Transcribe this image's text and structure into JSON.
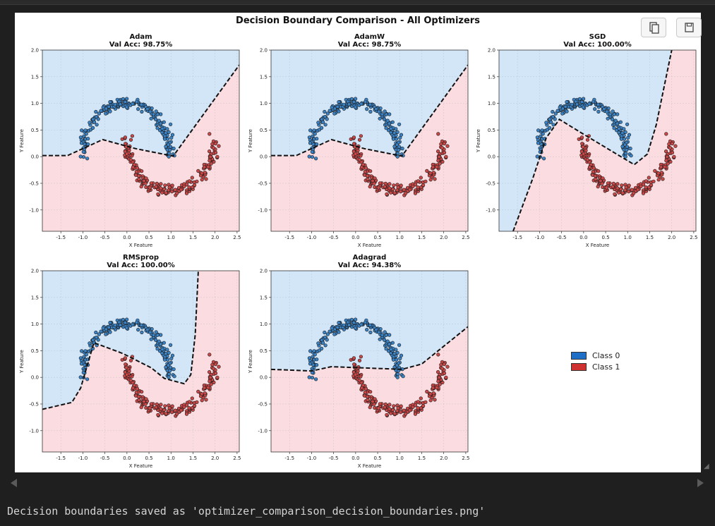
{
  "figure_title": "Decision Boundary Comparison - All Optimizers",
  "output_text": "Decision boundaries saved as 'optimizer_comparison_decision_boundaries.png'",
  "toolbar": {
    "copy_icon": "copy-icon",
    "save_icon": "save-icon"
  },
  "colors": {
    "class0_region": "#d2e6f8",
    "class1_region": "#fbdde1",
    "class0_point": "#3b82c4",
    "class1_point": "#c94747",
    "boundary": "#111111"
  },
  "chart_data": [
    {
      "type": "scatter",
      "title": "Adam",
      "subtitle": "Val Acc: 98.75%",
      "xlabel": "X Feature",
      "ylabel": "Y Feature",
      "xlim": [
        -1.92,
        2.55
      ],
      "ylim": [
        -1.4,
        2.0
      ],
      "xticks": [
        "-1.5",
        "-1.0",
        "-0.5",
        "0.0",
        "0.5",
        "1.0",
        "1.5",
        "2.0",
        "2.5"
      ],
      "yticks": [
        "2.0",
        "1.5",
        "1.0",
        "0.5",
        "0.0",
        "-0.5",
        "-1.0"
      ],
      "grid": true,
      "boundary": [
        [
          -1.92,
          0.02
        ],
        [
          -1.35,
          0.02
        ],
        [
          -0.55,
          0.32
        ],
        [
          0.2,
          0.15
        ],
        [
          1.05,
          0.01
        ],
        [
          2.55,
          1.72
        ]
      ]
    },
    {
      "type": "scatter",
      "title": "AdamW",
      "subtitle": "Val Acc: 98.75%",
      "xlabel": "X Feature",
      "ylabel": "Y Feature",
      "xlim": [
        -1.92,
        2.55
      ],
      "ylim": [
        -1.4,
        2.0
      ],
      "xticks": [
        "-1.5",
        "-1.0",
        "-0.5",
        "0.0",
        "0.5",
        "1.0",
        "1.5",
        "2.0",
        "2.5"
      ],
      "yticks": [
        "2.0",
        "1.5",
        "1.0",
        "0.5",
        "0.0",
        "-0.5",
        "-1.0"
      ],
      "grid": true,
      "boundary": [
        [
          -1.92,
          0.02
        ],
        [
          -1.35,
          0.02
        ],
        [
          -0.55,
          0.32
        ],
        [
          0.2,
          0.15
        ],
        [
          1.05,
          0.01
        ],
        [
          2.55,
          1.72
        ]
      ]
    },
    {
      "type": "scatter",
      "title": "SGD",
      "subtitle": "Val Acc: 100.00%",
      "xlabel": "X Feature",
      "ylabel": "Y Feature",
      "xlim": [
        -1.92,
        2.55
      ],
      "ylim": [
        -1.4,
        2.0
      ],
      "xticks": [
        "-1.5",
        "-1.0",
        "-0.5",
        "0.0",
        "0.5",
        "1.0",
        "1.5",
        "2.0",
        "2.5"
      ],
      "yticks": [
        "2.0",
        "1.5",
        "1.0",
        "0.5",
        "0.0",
        "-0.5",
        "-1.0"
      ],
      "grid": true,
      "boundary": [
        [
          -1.6,
          -1.4
        ],
        [
          -1.15,
          -0.4
        ],
        [
          -0.85,
          0.35
        ],
        [
          -0.55,
          0.7
        ],
        [
          0.0,
          0.42
        ],
        [
          1.15,
          -0.15
        ],
        [
          1.45,
          0.05
        ],
        [
          1.65,
          0.6
        ],
        [
          2.0,
          2.0
        ]
      ]
    },
    {
      "type": "scatter",
      "title": "RMSprop",
      "subtitle": "Val Acc: 100.00%",
      "xlabel": "X Feature",
      "ylabel": "Y Feature",
      "xlim": [
        -1.92,
        2.55
      ],
      "ylim": [
        -1.4,
        2.0
      ],
      "xticks": [
        "-1.5",
        "-1.0",
        "-0.5",
        "0.0",
        "0.5",
        "1.0",
        "1.5",
        "2.0",
        "2.5"
      ],
      "yticks": [
        "2.0",
        "1.5",
        "1.0",
        "0.5",
        "0.0",
        "-0.5",
        "-1.0"
      ],
      "grid": true,
      "boundary": [
        [
          -1.92,
          -0.6
        ],
        [
          -1.25,
          -0.47
        ],
        [
          -1.05,
          -0.2
        ],
        [
          -0.75,
          0.65
        ],
        [
          -0.1,
          0.45
        ],
        [
          0.55,
          0.18
        ],
        [
          0.85,
          -0.02
        ],
        [
          1.3,
          -0.12
        ],
        [
          1.45,
          0.05
        ],
        [
          1.55,
          0.8
        ],
        [
          1.62,
          2.0
        ]
      ]
    },
    {
      "type": "scatter",
      "title": "Adagrad",
      "subtitle": "Val Acc: 94.38%",
      "xlabel": "X Feature",
      "ylabel": "Y Feature",
      "xlim": [
        -1.92,
        2.55
      ],
      "ylim": [
        -1.4,
        2.0
      ],
      "xticks": [
        "-1.5",
        "-1.0",
        "-0.5",
        "0.0",
        "0.5",
        "1.0",
        "1.5",
        "2.0",
        "2.5"
      ],
      "yticks": [
        "2.0",
        "1.5",
        "1.0",
        "0.5",
        "0.0",
        "-0.5",
        "-1.0"
      ],
      "grid": true,
      "boundary": [
        [
          -1.92,
          0.15
        ],
        [
          -1.0,
          0.12
        ],
        [
          -0.55,
          0.2
        ],
        [
          0.1,
          0.18
        ],
        [
          1.05,
          0.15
        ],
        [
          1.5,
          0.25
        ],
        [
          2.55,
          0.95
        ]
      ]
    }
  ],
  "legend": {
    "position": "right",
    "entries": [
      {
        "label": "Class 0",
        "color": "#3b82c4"
      },
      {
        "label": "Class 1",
        "color": "#c94747"
      }
    ]
  }
}
